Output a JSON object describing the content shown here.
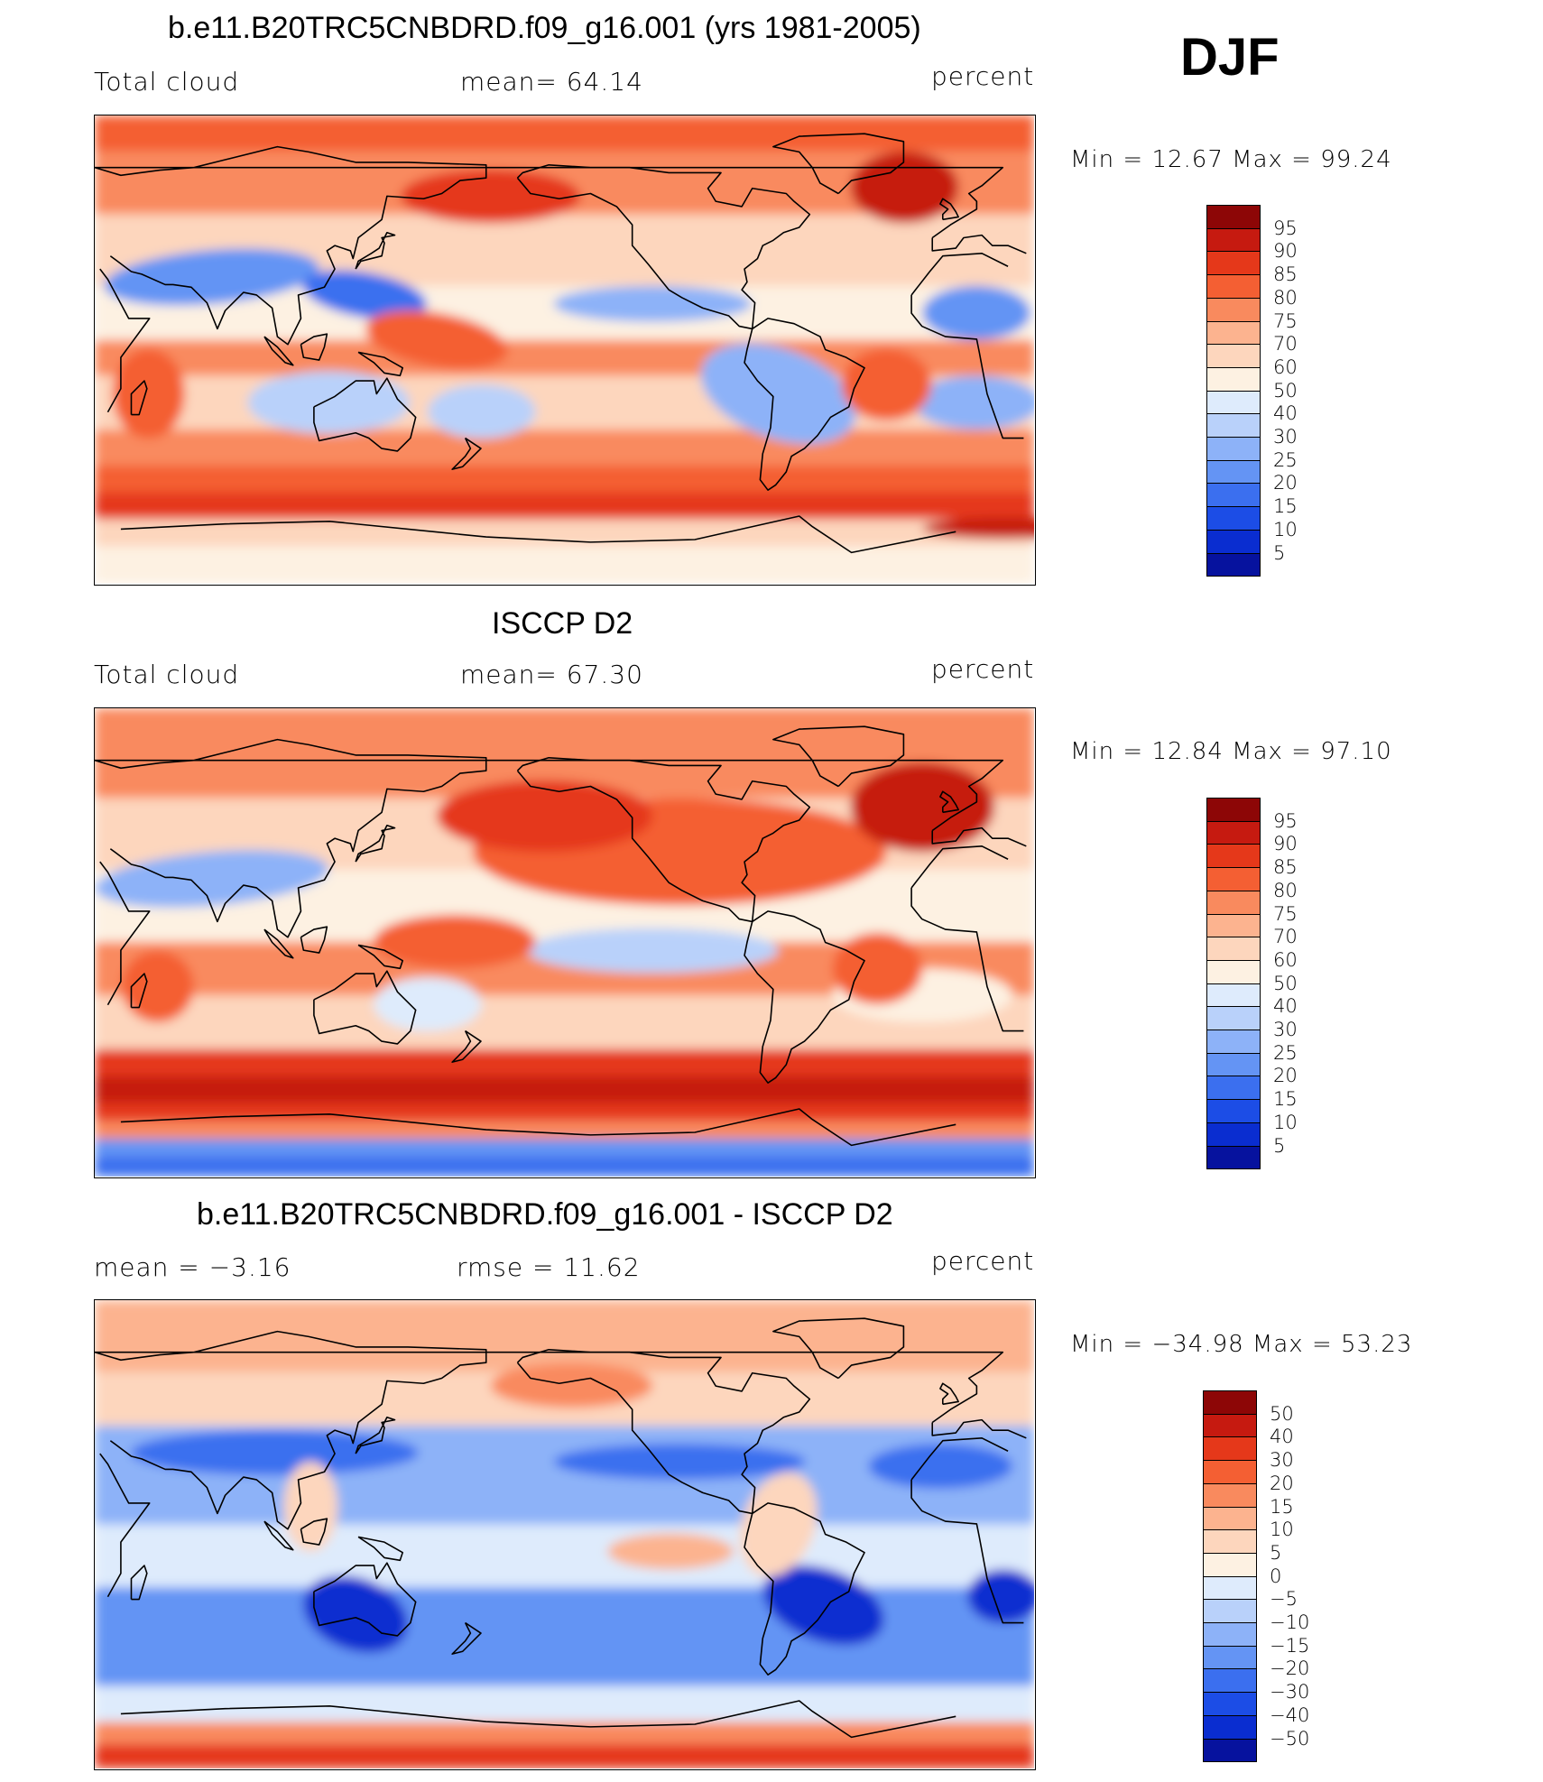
{
  "season": "DJF",
  "colors": {
    "seq": [
      "#04006b",
      "#06129e",
      "#0a2dd0",
      "#1c4de6",
      "#3b6fef",
      "#6494f4",
      "#8db2f8",
      "#b9d1fa",
      "#deebfc",
      "#fdf1e2",
      "#fdd6bd",
      "#fcb38f",
      "#f98a5e",
      "#f45f33",
      "#e5381a",
      "#c61a10",
      "#8d0606"
    ],
    "diff": [
      "#04006b",
      "#06129e",
      "#0a2dd0",
      "#1c4de6",
      "#3b6fef",
      "#6494f4",
      "#8db2f8",
      "#b9d1fa",
      "#deebfc",
      "#fdf1e2",
      "#fdd6bd",
      "#fcb38f",
      "#f98a5e",
      "#f45f33",
      "#e5381a",
      "#c61a10",
      "#8d0606"
    ]
  },
  "panels": [
    {
      "title": "b.e11.B20TRC5CNBDRD.f09_g16.001 (yrs 1981-2005)",
      "left_label": "Total cloud",
      "mid_label": "mean=   64.14",
      "units": "percent",
      "minmax": "Min =   12.67 Max =   99.24",
      "colorbar_labels": [
        "95",
        "90",
        "85",
        "80",
        "75",
        "70",
        "60",
        "50",
        "40",
        "30",
        "25",
        "20",
        "15",
        "10",
        "5"
      ],
      "palette": "seq",
      "map_kind": "model"
    },
    {
      "title": "ISCCP D2",
      "left_label": "Total cloud",
      "mid_label": "mean=   67.30",
      "units": "percent",
      "minmax": "Min =   12.84 Max =   97.10",
      "colorbar_labels": [
        "95",
        "90",
        "85",
        "80",
        "75",
        "70",
        "60",
        "50",
        "40",
        "30",
        "25",
        "20",
        "15",
        "10",
        "5"
      ],
      "palette": "seq",
      "map_kind": "obs"
    },
    {
      "title": "b.e11.B20TRC5CNBDRD.f09_g16.001 - ISCCP D2",
      "left_label": "mean =   −3.16",
      "mid_label": "rmse =   11.62",
      "units": "percent",
      "minmax": "Min = −34.98 Max =   53.23",
      "colorbar_labels": [
        "50",
        "40",
        "30",
        "20",
        "15",
        "10",
        "5",
        "0",
        "−5",
        "−10",
        "−15",
        "−20",
        "−30",
        "−40",
        "−50"
      ],
      "palette": "diff",
      "map_kind": "diff"
    }
  ]
}
